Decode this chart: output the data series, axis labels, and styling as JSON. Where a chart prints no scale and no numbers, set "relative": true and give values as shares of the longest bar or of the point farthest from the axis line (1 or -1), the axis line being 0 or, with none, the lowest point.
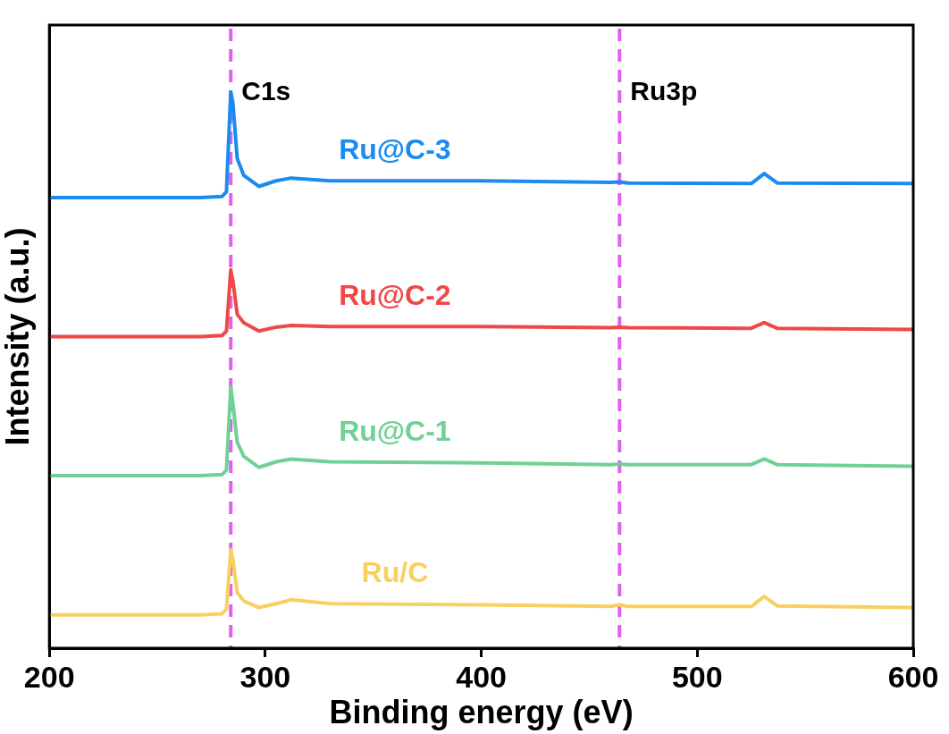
{
  "chart_data": {
    "type": "line",
    "xlabel": "Binding energy (eV)",
    "ylabel": "Intensity (a.u.)",
    "relative": true,
    "x": [
      200,
      270,
      280,
      282,
      284,
      285,
      287,
      290,
      297,
      305,
      312,
      330,
      400,
      460,
      464,
      468,
      525,
      531,
      537,
      600
    ],
    "xlim": [
      200,
      600
    ],
    "xticks": [
      200,
      300,
      400,
      500,
      600
    ],
    "grid": false,
    "legend": false,
    "marker": "none",
    "line_style": "solid",
    "series": [
      {
        "name": "Ru@C-3",
        "color": "#1a8cf0",
        "values": [
          0.81,
          0.81,
          0.812,
          0.82,
          1.0,
          0.98,
          0.88,
          0.85,
          0.83,
          0.84,
          0.845,
          0.84,
          0.84,
          0.837,
          0.838,
          0.836,
          0.835,
          0.853,
          0.836,
          0.835
        ]
      },
      {
        "name": "Ru@C-2",
        "color": "#f04848",
        "values": [
          0.56,
          0.56,
          0.562,
          0.57,
          0.68,
          0.66,
          0.6,
          0.585,
          0.57,
          0.577,
          0.58,
          0.578,
          0.578,
          0.576,
          0.577,
          0.576,
          0.575,
          0.585,
          0.575,
          0.573
        ]
      },
      {
        "name": "Ru@C-1",
        "color": "#70d095",
        "values": [
          0.31,
          0.31,
          0.312,
          0.32,
          0.47,
          0.44,
          0.37,
          0.345,
          0.325,
          0.335,
          0.34,
          0.335,
          0.333,
          0.33,
          0.331,
          0.33,
          0.33,
          0.34,
          0.33,
          0.327
        ]
      },
      {
        "name": "Ru/C",
        "color": "#f8d060",
        "values": [
          0.06,
          0.06,
          0.062,
          0.07,
          0.177,
          0.16,
          0.1,
          0.085,
          0.073,
          0.08,
          0.087,
          0.08,
          0.078,
          0.075,
          0.078,
          0.075,
          0.075,
          0.093,
          0.076,
          0.073
        ]
      }
    ],
    "ref_lines": [
      {
        "axis": "x",
        "value": 284,
        "label": "C1s",
        "color": "#e060f0",
        "line_style": "dashed"
      },
      {
        "axis": "x",
        "value": 464,
        "label": "Ru3p",
        "color": "#e060f0",
        "line_style": "dashed"
      }
    ]
  }
}
